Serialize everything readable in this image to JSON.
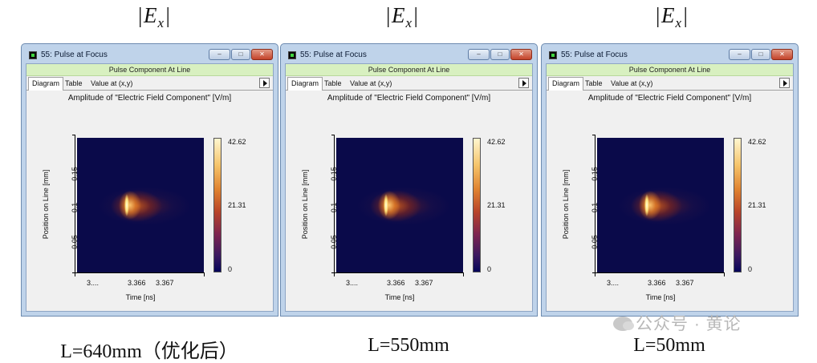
{
  "column_title_base": "|E",
  "column_title_sub": "x",
  "column_title_end": "|",
  "window": {
    "title": "55: Pulse at Focus",
    "section_header": "Pulse Component At Line",
    "tabs": [
      "Diagram",
      "Table",
      "Value at (x,y)"
    ],
    "active_tab": "Diagram"
  },
  "plot": {
    "title": "Amplitude of \"Electric Field Component\"  [V/m]",
    "ylabel": "Position on Line [mm]",
    "xlabel": "Time [ns]",
    "y_ticks": [
      "0.15",
      "0.1",
      "0.05"
    ],
    "x_ticks": [
      "3....",
      "3.366",
      "3.367"
    ],
    "colorbar": {
      "max": "42.62",
      "mid": "21.31",
      "min": "0"
    },
    "colormap": [
      "#05055a",
      "#7d2450",
      "#e08330",
      "#fff6cf"
    ]
  },
  "captions": [
    "L=640mm（优化后）",
    "L=550mm",
    "L=50mm"
  ],
  "watermark": "公众号 · 黄论"
}
